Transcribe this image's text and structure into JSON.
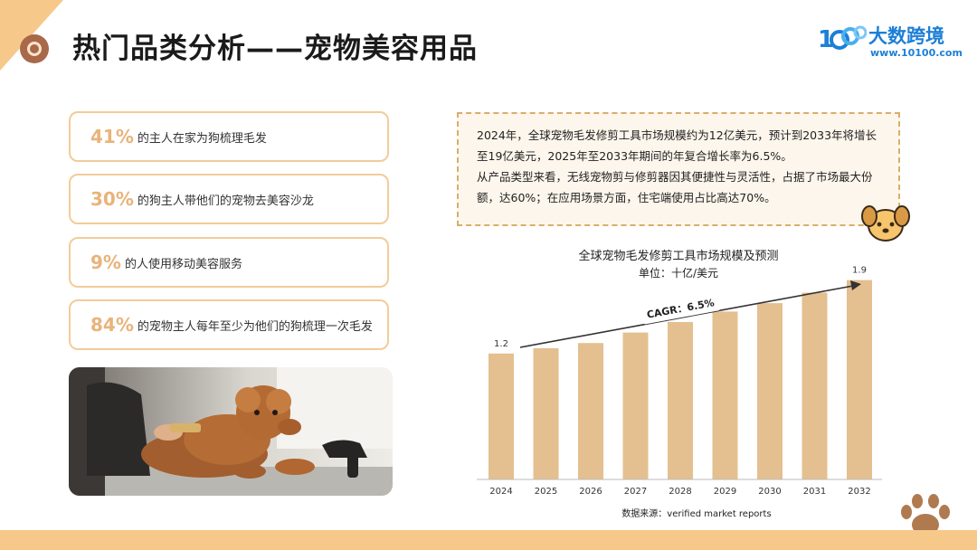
{
  "header": {
    "title": "热门品类分析——宠物美容用品",
    "brand_name": "大数跨境",
    "brand_url": "www.10100.com",
    "logo_mark": "1000"
  },
  "stats": [
    {
      "pct": "41%",
      "text": "的主人在家为狗梳理毛发"
    },
    {
      "pct": "30%",
      "text": "的狗主人带他们的宠物去美容沙龙"
    },
    {
      "pct": "9%",
      "text": "的人使用移动美容服务"
    },
    {
      "pct": "84%",
      "text": "的宠物主人每年至少为他们的狗梳理一次毛发"
    }
  ],
  "description": {
    "paragraph1": "2024年，全球宠物毛发修剪工具市场规模约为12亿美元，预计到2033年将增长至19亿美元，2025年至2033年期间的年复合增长率为6.5%。",
    "paragraph2": "从产品类型来看，无线宠物剪与修剪器因其便捷性与灵活性，占据了市场最大份额，达60%；在应用场景方面，住宅端使用占比高达70%。"
  },
  "chart_data": {
    "type": "bar",
    "title": "全球宠物毛发修剪工具市场规模及预测",
    "subtitle": "单位：十亿/美元",
    "categories": [
      "2024",
      "2025",
      "2026",
      "2027",
      "2028",
      "2029",
      "2030",
      "2031",
      "2032"
    ],
    "values": [
      1.2,
      1.25,
      1.3,
      1.4,
      1.5,
      1.6,
      1.68,
      1.78,
      1.9
    ],
    "data_labels": [
      "1.2",
      "",
      "",
      "",
      "",
      "",
      "",
      "",
      "1.9"
    ],
    "annotation": "CAGR：6.5%",
    "source": "数据来源：verified market reports",
    "bar_color": "#e4bf8f",
    "ylim": [
      0,
      2.0
    ],
    "grid": false,
    "legend": "none"
  },
  "colors": {
    "accent": "#f6c98a",
    "percent": "#e9b37a",
    "brand": "#1d7fd6",
    "bar": "#e4bf8f"
  },
  "icons": [
    "title-ring-icon",
    "logo-mark-icon",
    "dog-face-icon",
    "paw-icon"
  ]
}
